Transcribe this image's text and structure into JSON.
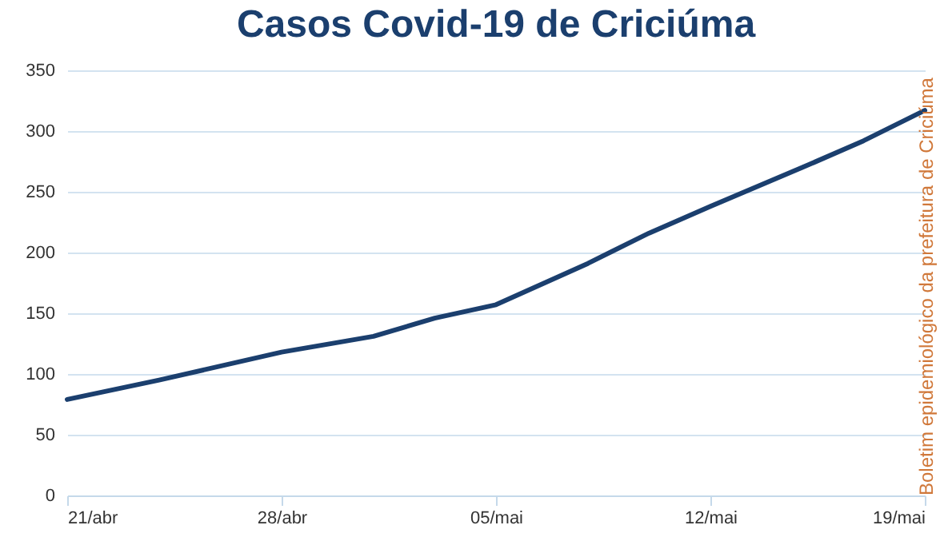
{
  "chart_data": {
    "type": "line",
    "title": "Casos Covid-19 de Criciúma",
    "x": [
      "--04-21",
      "--04-24",
      "--04-28",
      "--05-01",
      "--05-03",
      "--05-05",
      "--05-08",
      "--05-10",
      "--05-12",
      "--05-15",
      "--05-17",
      "--05-19"
    ],
    "series": [
      {
        "color": "#1b3f6e",
        "values": [
          79,
          95,
          118,
          131,
          146,
          157,
          191,
          216,
          238,
          270,
          292,
          317
        ]
      }
    ],
    "xlim": [
      "--04-21",
      "--05-19"
    ],
    "xticks": [
      {
        "value": "--04-21",
        "label": "21/abr"
      },
      {
        "value": "--04-28",
        "label": "28/abr"
      },
      {
        "value": "--05-05",
        "label": "05/mai"
      },
      {
        "value": "--05-12",
        "label": "12/mai"
      },
      {
        "value": "--05-19",
        "label": "19/mai"
      }
    ],
    "ylim": [
      0,
      350
    ],
    "yticks": [
      0,
      50,
      100,
      150,
      200,
      250,
      300,
      350
    ],
    "grid": "y",
    "marker": "none",
    "line_style": "solid",
    "annotations": [
      "Boletim epidemiológico da prefeitura de Criciúma"
    ]
  }
}
